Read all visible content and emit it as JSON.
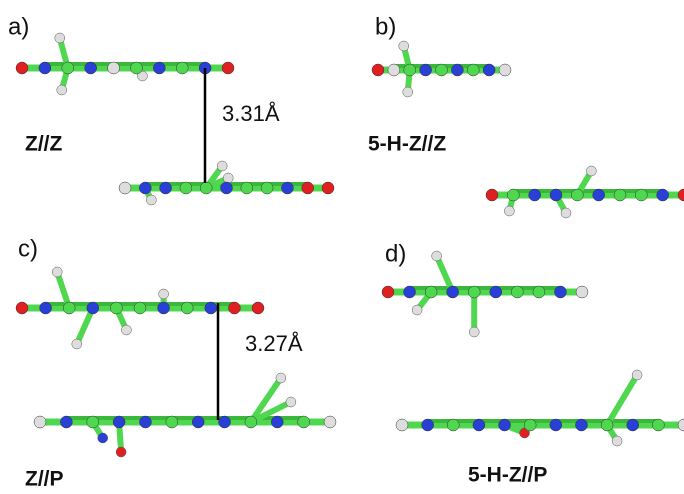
{
  "panels": [
    {
      "letter": "a)",
      "label": "Z//Z",
      "distance": "3.31Å"
    },
    {
      "letter": "b)",
      "label": "5-H-Z//Z"
    },
    {
      "letter": "c)",
      "label": "Z//P",
      "distance": "3.27Å"
    },
    {
      "letter": "d)",
      "label": "5-H-Z//P"
    }
  ]
}
